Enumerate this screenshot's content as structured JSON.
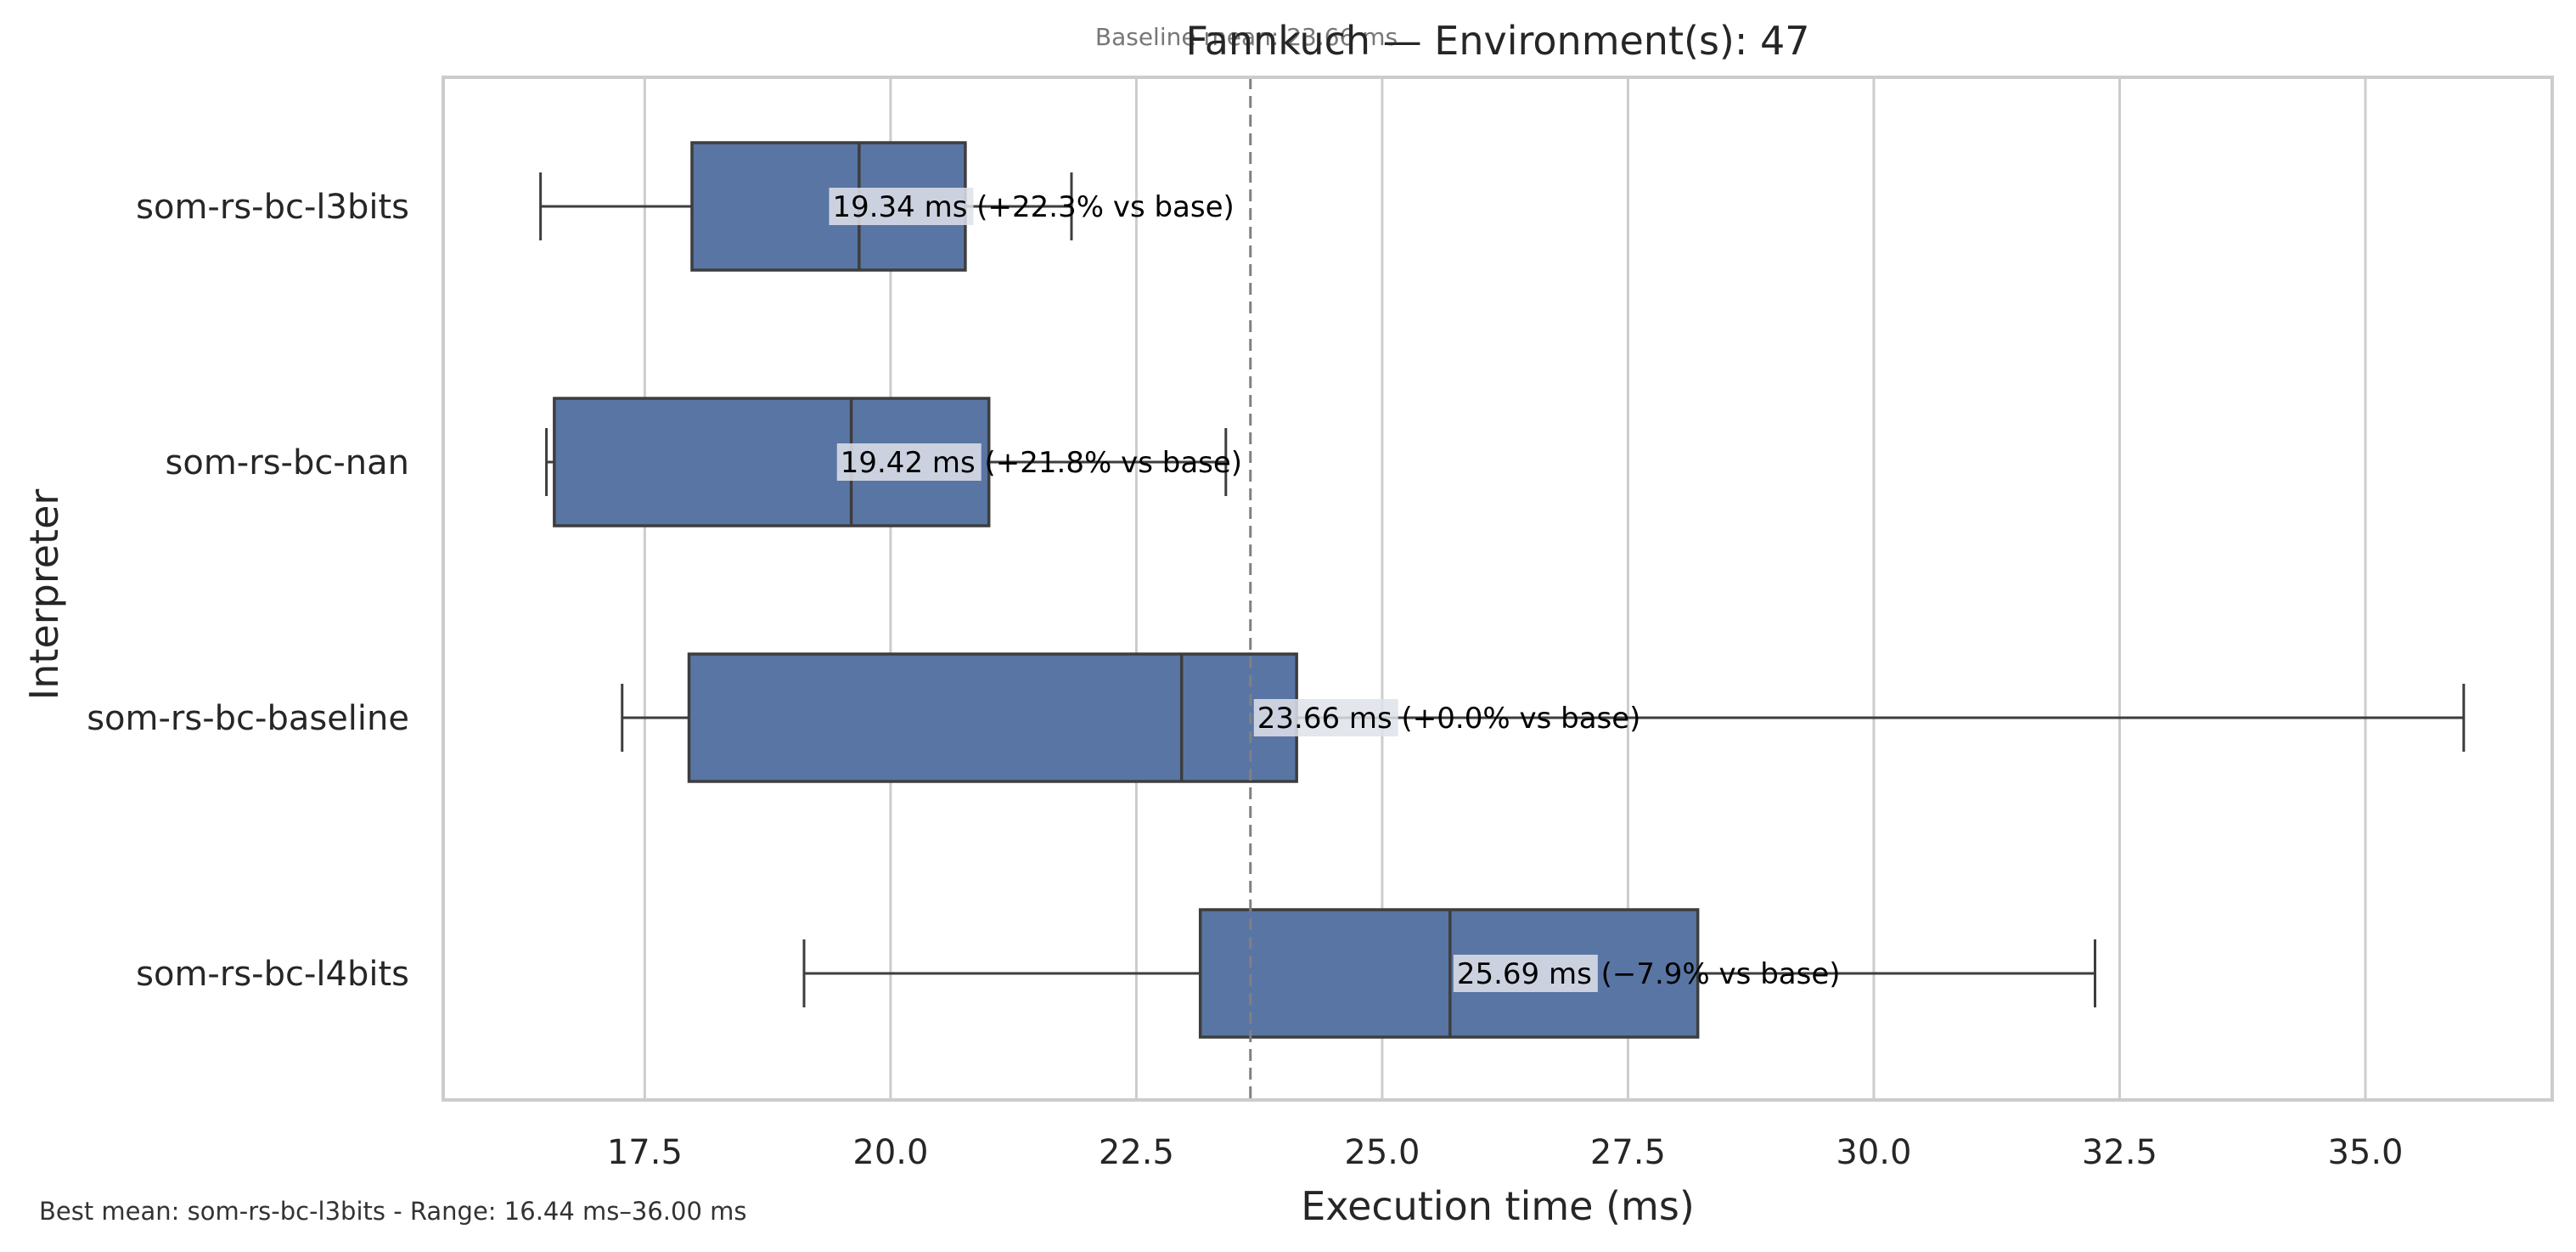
{
  "chart_data": {
    "type": "box",
    "title": "Fannkuch — Environment(s): 47",
    "xlabel": "Execution time (ms)",
    "ylabel": "Interpreter",
    "xlim": [
      15.45,
      36.9
    ],
    "xticks": [
      "17.5",
      "20.0",
      "22.5",
      "25.0",
      "27.5",
      "30.0",
      "32.5",
      "35.0"
    ],
    "grid": "vertical",
    "baseline": {
      "value": 23.66,
      "label": "Baseline mean: 23.66 ms"
    },
    "series": [
      {
        "name": "som-rs-bc-l3bits",
        "whisker_low": 16.44,
        "q1": 17.98,
        "median": 19.68,
        "q3": 20.76,
        "whisker_high": 21.84,
        "annotation": "19.34 ms  (+22.3% vs base)",
        "mean": 19.34
      },
      {
        "name": "som-rs-bc-nan",
        "whisker_low": 16.5,
        "q1": 16.58,
        "median": 19.6,
        "q3": 21.0,
        "whisker_high": 23.41,
        "annotation": "19.42 ms  (+21.8% vs base)",
        "mean": 19.42
      },
      {
        "name": "som-rs-bc-baseline",
        "whisker_low": 17.27,
        "q1": 17.95,
        "median": 22.96,
        "q3": 24.13,
        "whisker_high": 36.0,
        "annotation": "23.66 ms  (+0.0% vs base)",
        "mean": 23.66
      },
      {
        "name": "som-rs-bc-l4bits",
        "whisker_low": 19.12,
        "q1": 23.15,
        "median": 25.69,
        "q3": 28.21,
        "whisker_high": 32.25,
        "annotation": "25.69 ms  (−7.9% vs base)",
        "mean": 25.69
      }
    ],
    "box_color": "#5975a4",
    "line_color": "#3d3d3d"
  },
  "footer": "Best mean: som-rs-bc-l3bits - Range: 16.44 ms–36.00 ms"
}
